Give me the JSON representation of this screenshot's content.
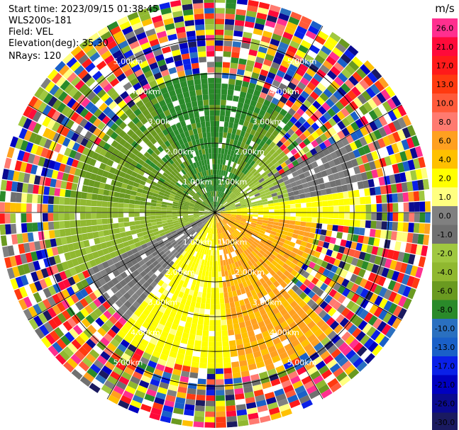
{
  "chart_data": {
    "type": "heatmap",
    "subtype": "polar-ppi",
    "info": {
      "start_time": "Start time: 2023/09/15 01:38:45",
      "device": "WLS200s-181",
      "field": "Field: VEL",
      "elevation": "Elevation(deg): 35.30",
      "nrays": "NRays: 120"
    },
    "range_rings_km": [
      1.0,
      2.0,
      3.0,
      4.0,
      5.0
    ],
    "ring_labels": [
      "1.00km",
      "2.00km",
      "3.00km",
      "4.00km",
      "5.00km"
    ],
    "max_range_km": 6.2,
    "azimuth_spokes_deg": [
      0,
      30,
      60,
      90,
      120,
      150,
      180,
      210,
      240,
      270,
      300,
      330
    ],
    "colorbar": {
      "unit": "m/s",
      "ticks": [
        "26.0",
        "21.0",
        "17.0",
        "13.0",
        "10.0",
        "8.0",
        "6.0",
        "4.0",
        "2.0",
        "1.0",
        "0.0",
        "-1.0",
        "-2.0",
        "-4.0",
        "-6.0",
        "-8.0",
        "-10.0",
        "-13.0",
        "-17.0",
        "-21.0",
        "-26.0",
        "-30.0"
      ],
      "colors": [
        "#ff2f8f",
        "#ff0a3a",
        "#ff1a1a",
        "#ff3a10",
        "#ff5a3a",
        "#ff7a70",
        "#ffa020",
        "#ffc000",
        "#ffff00",
        "#ffff80",
        "#808080",
        "#707070",
        "#a0c840",
        "#90b830",
        "#6a9a20",
        "#2a8a2a",
        "#2a70c0",
        "#1a60c8",
        "#0a20e8",
        "#0000c0",
        "#0a0a90",
        "#1a1a60"
      ]
    },
    "velocity_regions": [
      {
        "az": [
          0,
          20
        ],
        "r": [
          0,
          3.9
        ],
        "v": -6.5
      },
      {
        "az": [
          20,
          40
        ],
        "r": [
          0,
          3.6
        ],
        "v": -6
      },
      {
        "az": [
          40,
          55
        ],
        "r": [
          0,
          2.6
        ],
        "v": -2.5
      },
      {
        "az": [
          55,
          80
        ],
        "r": [
          0.3,
          2.2
        ],
        "v": -1.5
      },
      {
        "az": [
          60,
          80
        ],
        "r": [
          1.4,
          4.3
        ],
        "v": 0
      },
      {
        "az": [
          80,
          95
        ],
        "r": [
          0,
          4.4
        ],
        "v": 2.5
      },
      {
        "az": [
          95,
          135
        ],
        "r": [
          0.2,
          3.0
        ],
        "v": 6
      },
      {
        "az": [
          100,
          130
        ],
        "r": [
          0.8,
          2.3
        ],
        "v": 8
      },
      {
        "az": [
          135,
          175
        ],
        "r": [
          0,
          4.8
        ],
        "v": 6
      },
      {
        "az": [
          175,
          220
        ],
        "r": [
          0,
          4.5
        ],
        "v": 2.5
      },
      {
        "az": [
          220,
          245
        ],
        "r": [
          0,
          4.0
        ],
        "v": 0
      },
      {
        "az": [
          245,
          275
        ],
        "r": [
          0,
          4.6
        ],
        "v": -2.5
      },
      {
        "az": [
          275,
          300
        ],
        "r": [
          0,
          4.2
        ],
        "v": -4.5
      },
      {
        "az": [
          300,
          330
        ],
        "r": [
          0,
          3.8
        ],
        "v": -5.5
      },
      {
        "az": [
          330,
          360
        ],
        "r": [
          0,
          4.1
        ],
        "v": -6.5
      }
    ]
  }
}
